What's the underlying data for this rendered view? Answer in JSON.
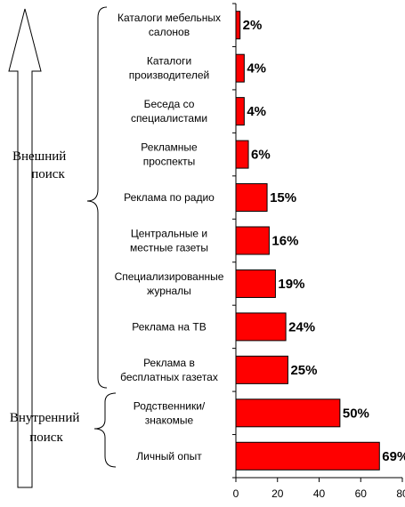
{
  "chart_data": {
    "type": "bar",
    "orientation": "horizontal",
    "categories": [
      [
        "Каталоги мебельных",
        "салонов"
      ],
      [
        "Каталоги",
        "производителей"
      ],
      [
        "Беседа со",
        "специалистами"
      ],
      [
        "Рекламные",
        "проспекты"
      ],
      [
        "Реклама по радио"
      ],
      [
        "Центральные и",
        "местные газеты"
      ],
      [
        "Специализированные",
        "журналы"
      ],
      [
        "Реклама на ТВ"
      ],
      [
        "Реклама в",
        "бесплатных газетах"
      ],
      [
        "Родственники/",
        "знакомые"
      ],
      [
        "Личный опыт"
      ]
    ],
    "values": [
      2,
      4,
      4,
      6,
      15,
      16,
      19,
      24,
      25,
      50,
      69
    ],
    "value_labels": [
      "2%",
      "4%",
      "4%",
      "6%",
      "15%",
      "16%",
      "19%",
      "24%",
      "25%",
      "50%",
      "69%"
    ],
    "xlim": [
      0,
      80
    ],
    "xticks": [
      "0",
      "20",
      "40",
      "60",
      "80"
    ],
    "bar_color": "#ff0000",
    "groups": [
      {
        "lines": [
          "Внешний",
          "поиск"
        ]
      },
      {
        "lines": [
          "Внутренний",
          "поиск"
        ]
      }
    ]
  }
}
